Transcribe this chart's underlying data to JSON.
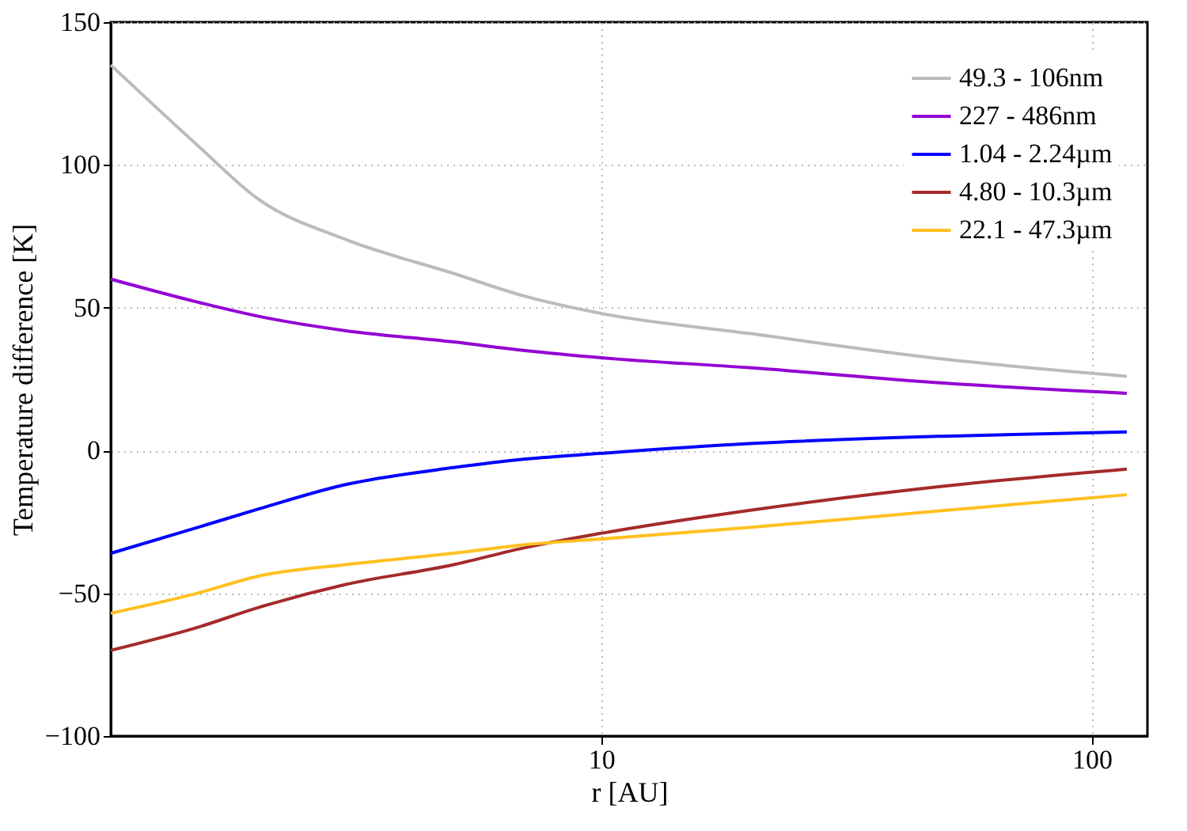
{
  "chart_data": {
    "type": "line",
    "xlabel": "r [AU]",
    "ylabel": "Temperature difference [K]",
    "log": "x",
    "xlim": [
      1,
      130
    ],
    "xticks": [
      10,
      100
    ],
    "ylim": [
      -100,
      150
    ],
    "yticks": [
      -100,
      -50,
      0,
      50,
      100,
      150
    ],
    "grid": true,
    "legend": "top right",
    "line_style": "solid",
    "marker": "none",
    "x": [
      1,
      1.5,
      2,
      3,
      5,
      7,
      10,
      20,
      50,
      118
    ],
    "series": [
      {
        "name": "49.3 - 106nm",
        "color": "#bbbbbb",
        "values": [
          135,
          107,
          88,
          74,
          62,
          54,
          48,
          41,
          32,
          26
        ]
      },
      {
        "name": "227 - 486nm",
        "color": "#9400d3",
        "values": [
          60,
          52,
          47,
          42,
          38,
          35,
          32.5,
          29,
          23.6,
          20
        ]
      },
      {
        "name": "1.04 - 2.24µm",
        "color": "#0000ff",
        "values": [
          -36,
          -27,
          -20.5,
          -12,
          -6,
          -3,
          -1,
          2.4,
          5,
          6.5
        ]
      },
      {
        "name": "4.80 - 10.3µm",
        "color": "#a52a2a",
        "values": [
          -70,
          -62,
          -55,
          -47,
          -40,
          -34,
          -29,
          -21,
          -12.5,
          -6.5
        ]
      },
      {
        "name": "22.1 - 47.3µm",
        "color": "#ffc020",
        "values": [
          -57,
          -50,
          -44,
          -40,
          -36,
          -33,
          -31,
          -27,
          -21,
          -15.5
        ]
      }
    ]
  }
}
